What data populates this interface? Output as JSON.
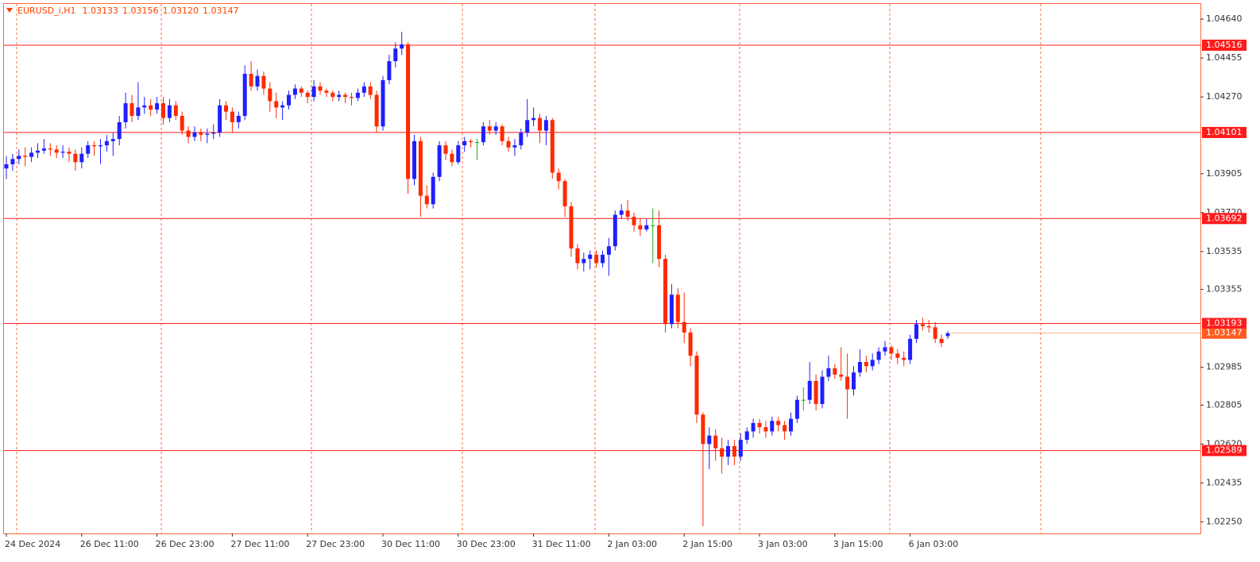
{
  "chart_data": {
    "type": "candlestick",
    "header": {
      "symbol": "EURUSD_i,H1",
      "quote": [
        "1.03133",
        "1.03156",
        "1.03120",
        "1.03147"
      ]
    },
    "colors": {
      "up": "#1f1fff",
      "down": "#ff2a00",
      "flat": "#22aa22",
      "level": "#ff1a1a",
      "current": "#ff5a1f",
      "grid": "#ff6a3d"
    },
    "ylim": [
      1.02195,
      1.04712
    ],
    "yticks": [
      {
        "value": 1.0464,
        "label": "1.04640"
      },
      {
        "value": 1.04455,
        "label": "1.04455"
      },
      {
        "value": 1.0427,
        "label": "1.04270"
      },
      {
        "value": 1.03905,
        "label": "1.03905"
      },
      {
        "value": 1.0372,
        "label": "1.03720"
      },
      {
        "value": 1.03535,
        "label": "1.03535"
      },
      {
        "value": 1.03355,
        "label": "1.03355"
      },
      {
        "value": 1.02985,
        "label": "1.02985"
      },
      {
        "value": 1.02805,
        "label": "1.02805"
      },
      {
        "value": 1.0262,
        "label": "1.02620"
      },
      {
        "value": 1.02435,
        "label": "1.02435"
      },
      {
        "value": 1.0225,
        "label": "1.02250"
      }
    ],
    "levels": [
      1.04516,
      1.04101,
      1.03692,
      1.03193,
      1.02589
    ],
    "categories": [
      "24 Dec 2024",
      null,
      null,
      null,
      null,
      null,
      null,
      null,
      null,
      null,
      null,
      null,
      "26 Dec 11:00",
      null,
      null,
      null,
      null,
      null,
      null,
      null,
      null,
      null,
      null,
      null,
      "26 Dec 23:00",
      null,
      null,
      null,
      null,
      null,
      null,
      null,
      null,
      null,
      null,
      null,
      "27 Dec 11:00",
      null,
      null,
      null,
      null,
      null,
      null,
      null,
      null,
      null,
      null,
      null,
      "27 Dec 23:00",
      null,
      null,
      null,
      null,
      null,
      null,
      null,
      null,
      null,
      null,
      null,
      "30 Dec 11:00",
      null,
      null,
      null,
      null,
      null,
      null,
      null,
      null,
      null,
      null,
      null,
      "30 Dec 23:00",
      null,
      null,
      null,
      null,
      null,
      null,
      null,
      null,
      null,
      null,
      null,
      "31 Dec 11:00",
      null,
      null,
      null,
      null,
      null,
      null,
      null,
      null,
      null,
      null,
      null,
      "2 Jan 03:00",
      null,
      null,
      null,
      null,
      null,
      null,
      null,
      null,
      null,
      null,
      null,
      "2 Jan 15:00",
      null,
      null,
      null,
      null,
      null,
      null,
      null,
      null,
      null,
      null,
      null,
      "3 Jan 03:00",
      null,
      null,
      null,
      null,
      null,
      null,
      null,
      null,
      null,
      null,
      null,
      "3 Jan 15:00",
      null,
      null,
      null,
      null,
      null,
      null,
      null,
      null,
      null,
      null,
      null,
      "6 Jan 03:00",
      null,
      null,
      null,
      null,
      null,
      null
    ],
    "ohlc": [
      [
        1.0393,
        1.0399,
        1.0388,
        1.0395
      ],
      [
        1.0395,
        1.04,
        1.0392,
        1.03975
      ],
      [
        1.03975,
        1.0402,
        1.0395,
        1.0399
      ],
      [
        1.0399,
        1.0403,
        1.0394,
        1.03985
      ],
      [
        1.03985,
        1.0403,
        1.0396,
        1.04005
      ],
      [
        1.04005,
        1.0405,
        1.0398,
        1.04015
      ],
      [
        1.04015,
        1.0407,
        1.04,
        1.04025
      ],
      [
        1.04025,
        1.0405,
        1.0399,
        1.0402
      ],
      [
        1.0402,
        1.0404,
        1.0398,
        1.04005
      ],
      [
        1.04005,
        1.0404,
        1.0398,
        1.0401
      ],
      [
        1.0401,
        1.0403,
        1.0396,
        1.04
      ],
      [
        1.04,
        1.0402,
        1.0392,
        1.0396
      ],
      [
        1.0396,
        1.0403,
        1.0393,
        1.04
      ],
      [
        1.04,
        1.0406,
        1.0398,
        1.0404
      ],
      [
        1.0404,
        1.0406,
        1.0399,
        1.04035
      ],
      [
        1.04035,
        1.0407,
        1.0395,
        1.0404
      ],
      [
        1.0404,
        1.0409,
        1.0401,
        1.0406
      ],
      [
        1.0406,
        1.041,
        1.0399,
        1.0407
      ],
      [
        1.0407,
        1.0418,
        1.0404,
        1.0415
      ],
      [
        1.0415,
        1.0429,
        1.0412,
        1.0424
      ],
      [
        1.0424,
        1.0428,
        1.0415,
        1.0418
      ],
      [
        1.0418,
        1.0434,
        1.0416,
        1.0422
      ],
      [
        1.0422,
        1.0427,
        1.0419,
        1.0423
      ],
      [
        1.0423,
        1.0426,
        1.0418,
        1.0421
      ],
      [
        1.0421,
        1.0427,
        1.0419,
        1.0424
      ],
      [
        1.0424,
        1.0427,
        1.0414,
        1.0417
      ],
      [
        1.0417,
        1.0426,
        1.0415,
        1.0423
      ],
      [
        1.0423,
        1.0425,
        1.0416,
        1.0418
      ],
      [
        1.0418,
        1.042,
        1.0409,
        1.0411
      ],
      [
        1.0411,
        1.0413,
        1.0405,
        1.0408
      ],
      [
        1.0408,
        1.0413,
        1.0406,
        1.041
      ],
      [
        1.041,
        1.0412,
        1.0406,
        1.0409
      ],
      [
        1.0409,
        1.0412,
        1.0405,
        1.04095
      ],
      [
        1.04095,
        1.0414,
        1.0407,
        1.041
      ],
      [
        1.041,
        1.0426,
        1.0408,
        1.0423
      ],
      [
        1.0423,
        1.0425,
        1.0416,
        1.042
      ],
      [
        1.042,
        1.0422,
        1.041,
        1.0415
      ],
      [
        1.0415,
        1.042,
        1.0412,
        1.0418
      ],
      [
        1.0418,
        1.0442,
        1.0416,
        1.0438
      ],
      [
        1.0438,
        1.0444,
        1.043,
        1.0432
      ],
      [
        1.0432,
        1.044,
        1.043,
        1.0437
      ],
      [
        1.0437,
        1.0439,
        1.0428,
        1.0431
      ],
      [
        1.0431,
        1.0434,
        1.042,
        1.0425
      ],
      [
        1.0425,
        1.0429,
        1.0417,
        1.0422
      ],
      [
        1.0422,
        1.0425,
        1.0416,
        1.0423
      ],
      [
        1.0423,
        1.043,
        1.0421,
        1.0428
      ],
      [
        1.0428,
        1.0433,
        1.0426,
        1.0431
      ],
      [
        1.0431,
        1.0432,
        1.0427,
        1.0429
      ],
      [
        1.0429,
        1.043,
        1.0424,
        1.0427
      ],
      [
        1.0427,
        1.0435,
        1.0425,
        1.0432
      ],
      [
        1.0432,
        1.0434,
        1.0428,
        1.043
      ],
      [
        1.043,
        1.0431,
        1.0427,
        1.0429
      ],
      [
        1.0429,
        1.043,
        1.0425,
        1.0427
      ],
      [
        1.0427,
        1.043,
        1.0425,
        1.0428
      ],
      [
        1.0428,
        1.0429,
        1.0424,
        1.0427
      ],
      [
        1.0427,
        1.0429,
        1.0423,
        1.04265
      ],
      [
        1.04265,
        1.0431,
        1.0425,
        1.0429
      ],
      [
        1.0429,
        1.0434,
        1.0427,
        1.0432
      ],
      [
        1.0432,
        1.0434,
        1.0426,
        1.0428
      ],
      [
        1.0428,
        1.043,
        1.041,
        1.0413
      ],
      [
        1.0413,
        1.0437,
        1.0411,
        1.0435
      ],
      [
        1.0435,
        1.0447,
        1.0433,
        1.0444
      ],
      [
        1.0444,
        1.0453,
        1.0441,
        1.045
      ],
      [
        1.045,
        1.0458,
        1.0447,
        1.0452
      ],
      [
        1.0452,
        1.0453,
        1.0381,
        1.0388
      ],
      [
        1.0388,
        1.0409,
        1.0385,
        1.0406
      ],
      [
        1.0406,
        1.0408,
        1.037,
        1.038
      ],
      [
        1.038,
        1.0385,
        1.0374,
        1.0376
      ],
      [
        1.0376,
        1.0391,
        1.0374,
        1.0389
      ],
      [
        1.0389,
        1.0406,
        1.0387,
        1.0404
      ],
      [
        1.0404,
        1.0406,
        1.0397,
        1.04
      ],
      [
        1.04,
        1.0402,
        1.0394,
        1.0396
      ],
      [
        1.0396,
        1.0406,
        1.0395,
        1.0404
      ],
      [
        1.0404,
        1.0408,
        1.0401,
        1.0406
      ],
      [
        1.0406,
        1.0407,
        1.0403,
        1.04055
      ],
      [
        1.04055,
        1.0407,
        1.0397,
        1.04055
      ],
      [
        1.04055,
        1.0415,
        1.0404,
        1.0413
      ],
      [
        1.0413,
        1.0416,
        1.0409,
        1.0411
      ],
      [
        1.0411,
        1.0415,
        1.0409,
        1.0413
      ],
      [
        1.0413,
        1.0414,
        1.0404,
        1.0406
      ],
      [
        1.0406,
        1.0408,
        1.0401,
        1.0403
      ],
      [
        1.0403,
        1.0407,
        1.0399,
        1.0404
      ],
      [
        1.0404,
        1.0412,
        1.0402,
        1.041
      ],
      [
        1.041,
        1.0426,
        1.0408,
        1.0416
      ],
      [
        1.0416,
        1.0422,
        1.0413,
        1.0417
      ],
      [
        1.0417,
        1.0419,
        1.0405,
        1.0411
      ],
      [
        1.0411,
        1.0418,
        1.0404,
        1.0416
      ],
      [
        1.0416,
        1.0417,
        1.0388,
        1.0391
      ],
      [
        1.0391,
        1.0393,
        1.0383,
        1.0387
      ],
      [
        1.0387,
        1.0388,
        1.037,
        1.0375
      ],
      [
        1.0375,
        1.0377,
        1.0351,
        1.0355
      ],
      [
        1.0355,
        1.0357,
        1.0345,
        1.0348
      ],
      [
        1.0348,
        1.0353,
        1.0344,
        1.035
      ],
      [
        1.035,
        1.0354,
        1.0345,
        1.0352
      ],
      [
        1.0352,
        1.0354,
        1.0346,
        1.0348
      ],
      [
        1.0348,
        1.0354,
        1.0346,
        1.0352
      ],
      [
        1.0352,
        1.036,
        1.0342,
        1.0356
      ],
      [
        1.0356,
        1.0373,
        1.0354,
        1.0371
      ],
      [
        1.0371,
        1.0376,
        1.0369,
        1.0373
      ],
      [
        1.0373,
        1.0378,
        1.0368,
        1.037
      ],
      [
        1.037,
        1.0372,
        1.0363,
        1.0366
      ],
      [
        1.0366,
        1.0369,
        1.0361,
        1.0364
      ],
      [
        1.0364,
        1.0369,
        1.0363,
        1.0366
      ],
      [
        1.0366,
        1.0374,
        1.0348,
        1.0366
      ],
      [
        1.0366,
        1.0373,
        1.0346,
        1.035
      ],
      [
        1.035,
        1.0352,
        1.0315,
        1.0319
      ],
      [
        1.0319,
        1.0338,
        1.0317,
        1.0333
      ],
      [
        1.0333,
        1.0336,
        1.0317,
        1.032
      ],
      [
        1.032,
        1.0334,
        1.031,
        1.0315
      ],
      [
        1.0315,
        1.0317,
        1.0299,
        1.0304
      ],
      [
        1.0304,
        1.0306,
        1.0272,
        1.0276
      ],
      [
        1.0276,
        1.0277,
        1.0223,
        1.0262
      ],
      [
        1.0262,
        1.027,
        1.025,
        1.0266
      ],
      [
        1.0266,
        1.0269,
        1.0254,
        1.026
      ],
      [
        1.026,
        1.0265,
        1.0248,
        1.0256
      ],
      [
        1.0256,
        1.0264,
        1.0252,
        1.0261
      ],
      [
        1.0261,
        1.0264,
        1.0252,
        1.0256
      ],
      [
        1.0256,
        1.0267,
        1.0254,
        1.0264
      ],
      [
        1.0264,
        1.027,
        1.0262,
        1.0268
      ],
      [
        1.0268,
        1.0274,
        1.0265,
        1.0272
      ],
      [
        1.0272,
        1.0274,
        1.0267,
        1.027
      ],
      [
        1.027,
        1.0273,
        1.0265,
        1.0268
      ],
      [
        1.0268,
        1.0275,
        1.0266,
        1.0273
      ],
      [
        1.0273,
        1.0275,
        1.0268,
        1.0271
      ],
      [
        1.0271,
        1.0273,
        1.0264,
        1.0268
      ],
      [
        1.0268,
        1.0277,
        1.0266,
        1.0274
      ],
      [
        1.0274,
        1.0285,
        1.0272,
        1.0283
      ],
      [
        1.0283,
        1.0289,
        1.0278,
        1.0283
      ],
      [
        1.0283,
        1.0301,
        1.0281,
        1.0292
      ],
      [
        1.0292,
        1.0295,
        1.0278,
        1.0281
      ],
      [
        1.0281,
        1.0297,
        1.0279,
        1.0294
      ],
      [
        1.0294,
        1.0304,
        1.0292,
        1.0298
      ],
      [
        1.0298,
        1.03,
        1.0293,
        1.0295
      ],
      [
        1.0295,
        1.0308,
        1.0292,
        1.0294
      ],
      [
        1.0294,
        1.0305,
        1.0274,
        1.0288
      ],
      [
        1.0288,
        1.0299,
        1.0285,
        1.0296
      ],
      [
        1.0296,
        1.0307,
        1.0294,
        1.0301
      ],
      [
        1.0301,
        1.0304,
        1.0296,
        1.0299
      ],
      [
        1.0299,
        1.0305,
        1.0297,
        1.0302
      ],
      [
        1.0302,
        1.0308,
        1.03,
        1.0306
      ],
      [
        1.0306,
        1.0311,
        1.0304,
        1.0308
      ],
      [
        1.0308,
        1.0309,
        1.0302,
        1.0305
      ],
      [
        1.0305,
        1.0307,
        1.03,
        1.0303
      ],
      [
        1.0303,
        1.0306,
        1.0299,
        1.0302
      ],
      [
        1.0302,
        1.0314,
        1.03,
        1.0312
      ],
      [
        1.0312,
        1.0321,
        1.031,
        1.0319
      ],
      [
        1.0319,
        1.0322,
        1.0316,
        1.0318
      ],
      [
        1.0318,
        1.0321,
        1.0315,
        1.03175
      ],
      [
        1.03175,
        1.032,
        1.031,
        1.0312
      ],
      [
        1.0312,
        1.0314,
        1.0308,
        1.031
      ],
      [
        1.03133,
        1.03156,
        1.0312,
        1.03147
      ]
    ]
  }
}
